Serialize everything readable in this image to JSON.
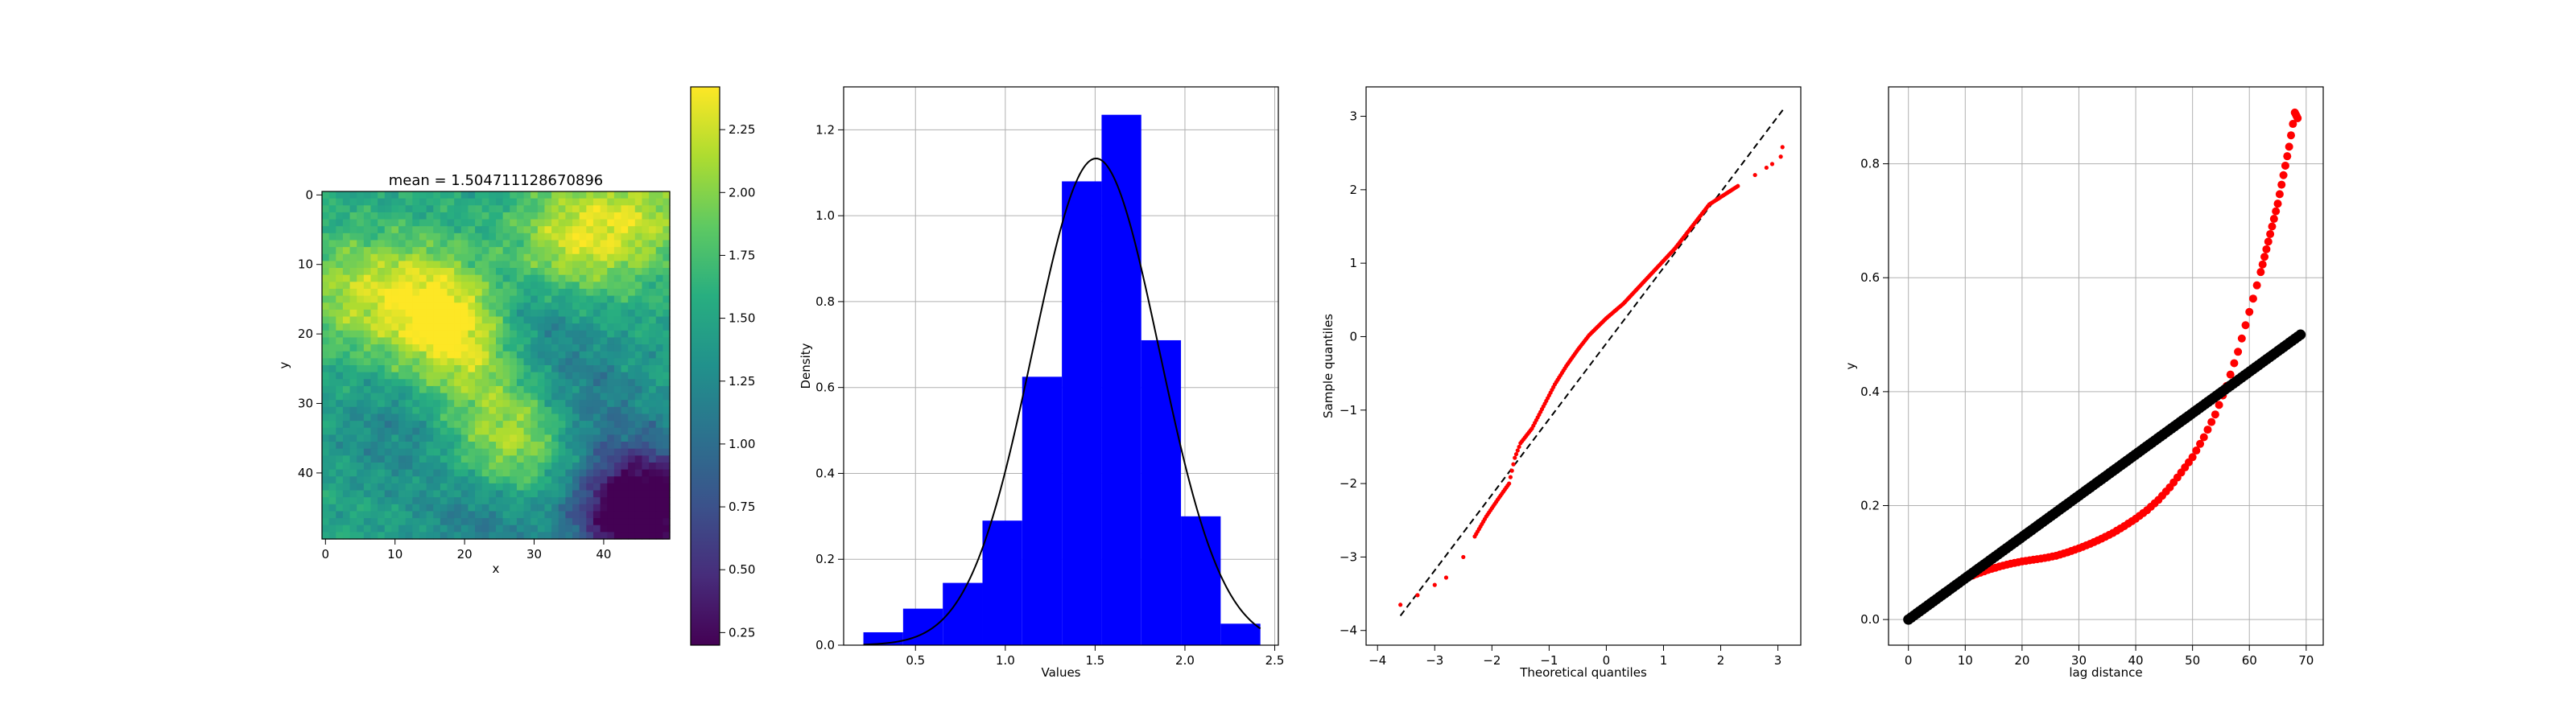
{
  "figure": {
    "background": "#ffffff"
  },
  "chart_data": [
    {
      "type": "heatmap",
      "title": "mean = 1.504711128670896",
      "xlabel": "x",
      "ylabel": "y",
      "grid_size": [
        50,
        50
      ],
      "xlim": [
        -0.5,
        49.5
      ],
      "ylim": [
        49.5,
        -0.5
      ],
      "xticks": [
        0,
        10,
        20,
        30,
        40
      ],
      "yticks": [
        0,
        10,
        20,
        30,
        40
      ],
      "colormap": "viridis",
      "colorbar": {
        "range": [
          0.2,
          2.42
        ],
        "ticks": [
          0.25,
          0.5,
          0.75,
          1.0,
          1.25,
          1.5,
          1.75,
          2.0,
          2.25
        ],
        "tick_labels": [
          "0.25",
          "0.50",
          "0.75",
          "1.00",
          "1.25",
          "1.50",
          "1.75",
          "2.00",
          "2.25"
        ]
      },
      "mean": 1.504711128670896,
      "features": [
        {
          "desc": "high",
          "cx": 35,
          "cy": 7,
          "value": 2.2
        },
        {
          "desc": "high",
          "cx": 45,
          "cy": 3,
          "value": 2.1
        },
        {
          "desc": "high",
          "cx": 14,
          "cy": 15,
          "value": 2.2
        },
        {
          "desc": "high",
          "cx": 20,
          "cy": 21,
          "value": 2.25
        },
        {
          "desc": "high",
          "cx": 27,
          "cy": 35,
          "value": 2.2
        },
        {
          "desc": "high",
          "cx": 3,
          "cy": 14,
          "value": 2.0
        },
        {
          "desc": "low",
          "cx": 47,
          "cy": 44,
          "value": 0.3
        },
        {
          "desc": "low",
          "cx": 42,
          "cy": 47,
          "value": 0.7
        },
        {
          "desc": "low",
          "cx": 38,
          "cy": 30,
          "value": 1.1
        },
        {
          "desc": "low",
          "cx": 30,
          "cy": 18,
          "value": 1.1
        },
        {
          "desc": "low",
          "cx": 10,
          "cy": 34,
          "value": 1.2
        },
        {
          "desc": "low",
          "cx": 22,
          "cy": 47,
          "value": 1.1
        }
      ]
    },
    {
      "type": "bar",
      "subtype": "histogram",
      "xlabel": "Values",
      "ylabel": "Density",
      "xlim": [
        0.1,
        2.52
      ],
      "ylim": [
        0,
        1.3
      ],
      "xticks": [
        0.5,
        1.0,
        1.5,
        2.0,
        2.5
      ],
      "yticks": [
        0.0,
        0.2,
        0.4,
        0.6,
        0.8,
        1.0,
        1.2
      ],
      "grid": true,
      "bar_color": "#0000ff",
      "bin_edges": [
        0.21,
        0.431,
        0.652,
        0.873,
        1.094,
        1.315,
        1.536,
        1.757,
        1.978,
        2.199,
        2.42
      ],
      "densities": [
        0.03,
        0.085,
        0.145,
        0.29,
        0.625,
        1.08,
        1.235,
        0.71,
        0.3,
        0.05
      ],
      "curve": {
        "type": "normal_pdf",
        "mean": 1.505,
        "sd": 0.352,
        "color": "#000000"
      }
    },
    {
      "type": "scatter",
      "subtype": "qq-plot",
      "xlabel": "Theoretical quantiles",
      "ylabel": "Sample quantiles",
      "xlim": [
        -4.2,
        3.4
      ],
      "ylim": [
        -4.2,
        3.4
      ],
      "xticks": [
        -4,
        -3,
        -2,
        -1,
        0,
        1,
        2,
        3
      ],
      "yticks": [
        -4,
        -3,
        -2,
        -1,
        0,
        1,
        2,
        3
      ],
      "grid": false,
      "reference_line": {
        "x": [
          -3.6,
          3.1
        ],
        "y": [
          -3.8,
          3.1
        ],
        "color": "#000000",
        "style": "dashed"
      },
      "sample_points": {
        "color": "#ff0000",
        "x": [
          -3.6,
          -3.3,
          -3.0,
          -2.8,
          -2.5,
          -2.3,
          -2.1,
          -1.9,
          -1.7,
          -1.6,
          -1.5,
          -1.3,
          -1.1,
          -0.9,
          -0.7,
          -0.5,
          -0.3,
          0.0,
          0.3,
          0.6,
          0.9,
          1.2,
          1.5,
          1.8,
          2.0,
          2.3,
          2.6,
          2.8,
          2.9,
          3.05,
          3.08
        ],
        "y": [
          -3.65,
          -3.52,
          -3.38,
          -3.28,
          -3.0,
          -2.72,
          -2.45,
          -2.22,
          -2.0,
          -1.65,
          -1.45,
          -1.25,
          -0.95,
          -0.65,
          -0.4,
          -0.18,
          0.02,
          0.25,
          0.45,
          0.7,
          0.95,
          1.2,
          1.5,
          1.8,
          1.9,
          2.05,
          2.2,
          2.3,
          2.35,
          2.45,
          2.58
        ]
      }
    },
    {
      "type": "scatter",
      "subtype": "variogram",
      "xlabel": "lag distance",
      "ylabel": "y",
      "xlim": [
        -3.5,
        73.0
      ],
      "ylim": [
        -0.045,
        0.935
      ],
      "xticks": [
        0,
        10,
        20,
        30,
        40,
        50,
        60,
        70
      ],
      "yticks": [
        0.0,
        0.2,
        0.4,
        0.6,
        0.8
      ],
      "yticklabels": [
        "0.0",
        "0.2",
        "0.4",
        "0.6",
        "0.8"
      ],
      "grid": true,
      "series": [
        {
          "color": "#ff0000",
          "x": [
            0,
            2,
            4,
            6,
            8,
            10,
            12,
            14,
            16,
            18,
            20,
            22,
            24,
            26,
            28,
            30,
            32,
            34,
            36,
            38,
            40,
            42,
            44,
            46,
            48,
            50,
            52,
            54,
            56,
            58,
            60,
            62,
            63,
            64,
            65,
            66,
            67,
            68,
            68.5
          ],
          "y": [
            0.0,
            0.015,
            0.03,
            0.045,
            0.06,
            0.072,
            0.08,
            0.087,
            0.093,
            0.098,
            0.102,
            0.105,
            0.108,
            0.112,
            0.118,
            0.125,
            0.133,
            0.142,
            0.152,
            0.164,
            0.177,
            0.192,
            0.21,
            0.232,
            0.258,
            0.285,
            0.32,
            0.36,
            0.41,
            0.47,
            0.54,
            0.61,
            0.65,
            0.69,
            0.73,
            0.78,
            0.83,
            0.89,
            0.88
          ]
        },
        {
          "color": "#000000",
          "x": [
            0,
            69
          ],
          "y": [
            0.0,
            0.5
          ]
        }
      ]
    }
  ]
}
